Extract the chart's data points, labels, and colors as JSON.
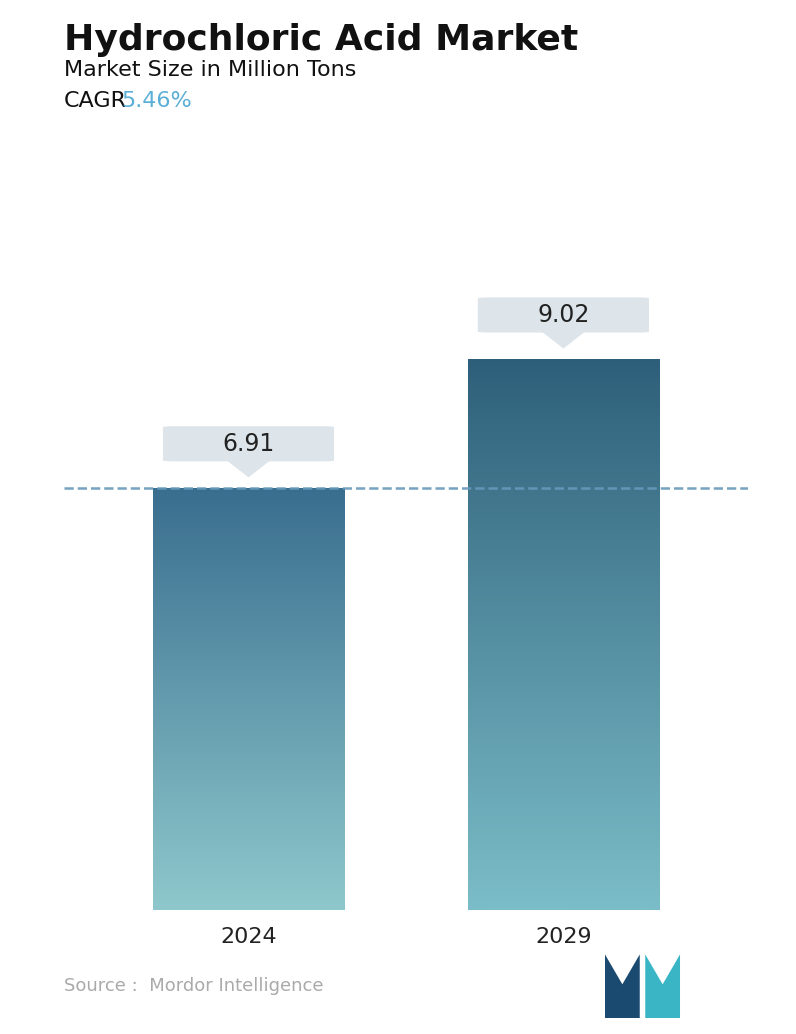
{
  "title": "Hydrochloric Acid Market",
  "subtitle": "Market Size in Million Tons",
  "cagr_label": "CAGR",
  "cagr_value": "5.46%",
  "cagr_color": "#5bafd6",
  "categories": [
    "2024",
    "2029"
  ],
  "values": [
    6.91,
    9.02
  ],
  "bar_top_colors": [
    "#3a6e8f",
    "#2e5f7a"
  ],
  "bar_bottom_colors": [
    "#8ec8cc",
    "#7bbdc8"
  ],
  "dashed_line_y": 6.91,
  "dashed_line_color": "#6699bb",
  "background_color": "#ffffff",
  "source_text": "Source :  Mordor Intelligence",
  "source_color": "#aaaaaa",
  "label_box_color": "#dde5ea",
  "label_text_color": "#222222",
  "ylim": [
    0,
    10.5
  ],
  "bar_width": 0.28,
  "x_positions": [
    0.27,
    0.73
  ],
  "title_fontsize": 26,
  "subtitle_fontsize": 16,
  "cagr_fontsize": 16,
  "tick_fontsize": 16,
  "label_fontsize": 17,
  "source_fontsize": 13
}
